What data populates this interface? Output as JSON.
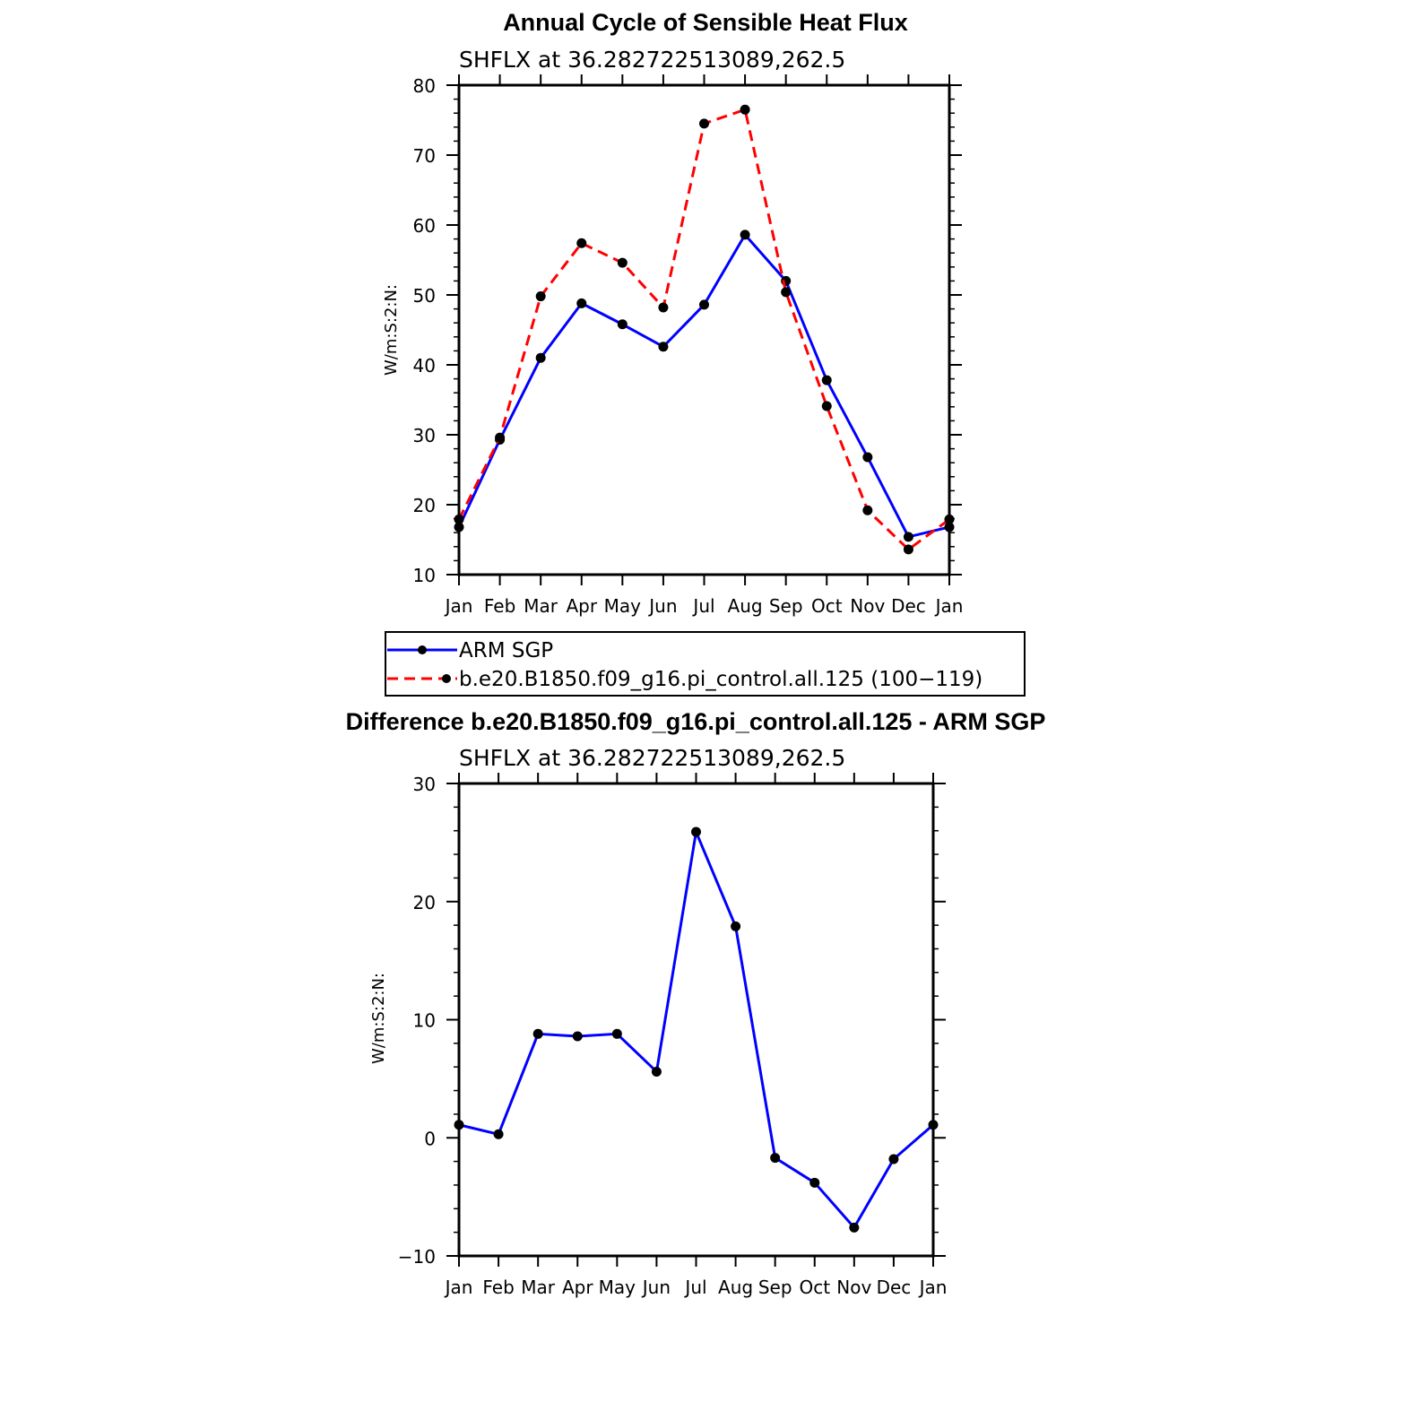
{
  "chart_data": [
    {
      "type": "line",
      "title": "Annual Cycle of Sensible Heat Flux",
      "subtitle": "SHFLX at 36.282722513089,262.5",
      "xlabel": "",
      "ylabel": "W/m:S:2:N:",
      "categories": [
        "Jan",
        "Feb",
        "Mar",
        "Apr",
        "May",
        "Jun",
        "Jul",
        "Aug",
        "Sep",
        "Oct",
        "Nov",
        "Dec",
        "Jan"
      ],
      "ylim": [
        10,
        80
      ],
      "yticks": [
        10,
        20,
        30,
        40,
        50,
        60,
        70,
        80
      ],
      "grid": false,
      "series": [
        {
          "name": "ARM SGP",
          "color": "#0000ff",
          "dash": "solid",
          "values": [
            16.8,
            29.3,
            41.0,
            48.8,
            45.8,
            42.6,
            48.6,
            58.6,
            52.0,
            37.8,
            26.8,
            15.4,
            16.8
          ]
        },
        {
          "name": "b.e20.B1850.f09_g16.pi_control.all.125 (100−119)",
          "color": "#ff0000",
          "dash": "dashed",
          "values": [
            17.9,
            29.6,
            49.8,
            57.4,
            54.6,
            48.2,
            74.5,
            76.5,
            50.4,
            34.1,
            19.2,
            13.6,
            17.9
          ]
        }
      ],
      "legend": "below"
    },
    {
      "type": "line",
      "title": "Difference b.e20.B1850.f09_g16.pi_control.all.125 - ARM SGP",
      "subtitle": "SHFLX at 36.282722513089,262.5",
      "xlabel": "",
      "ylabel": "W/m:S:2:N:",
      "categories": [
        "Jan",
        "Feb",
        "Mar",
        "Apr",
        "May",
        "Jun",
        "Jul",
        "Aug",
        "Sep",
        "Oct",
        "Nov",
        "Dec",
        "Jan"
      ],
      "ylim": [
        -10,
        30
      ],
      "yticks": [
        -10,
        0,
        10,
        20,
        30
      ],
      "ytick_labels": [
        "−10",
        "0",
        "10",
        "20",
        "30"
      ],
      "grid": false,
      "series": [
        {
          "color": "#0000ff",
          "dash": "solid",
          "values": [
            1.1,
            0.3,
            8.8,
            8.6,
            8.8,
            5.6,
            25.9,
            17.9,
            -1.7,
            -3.8,
            -7.6,
            -1.8,
            1.1
          ]
        }
      ]
    }
  ]
}
